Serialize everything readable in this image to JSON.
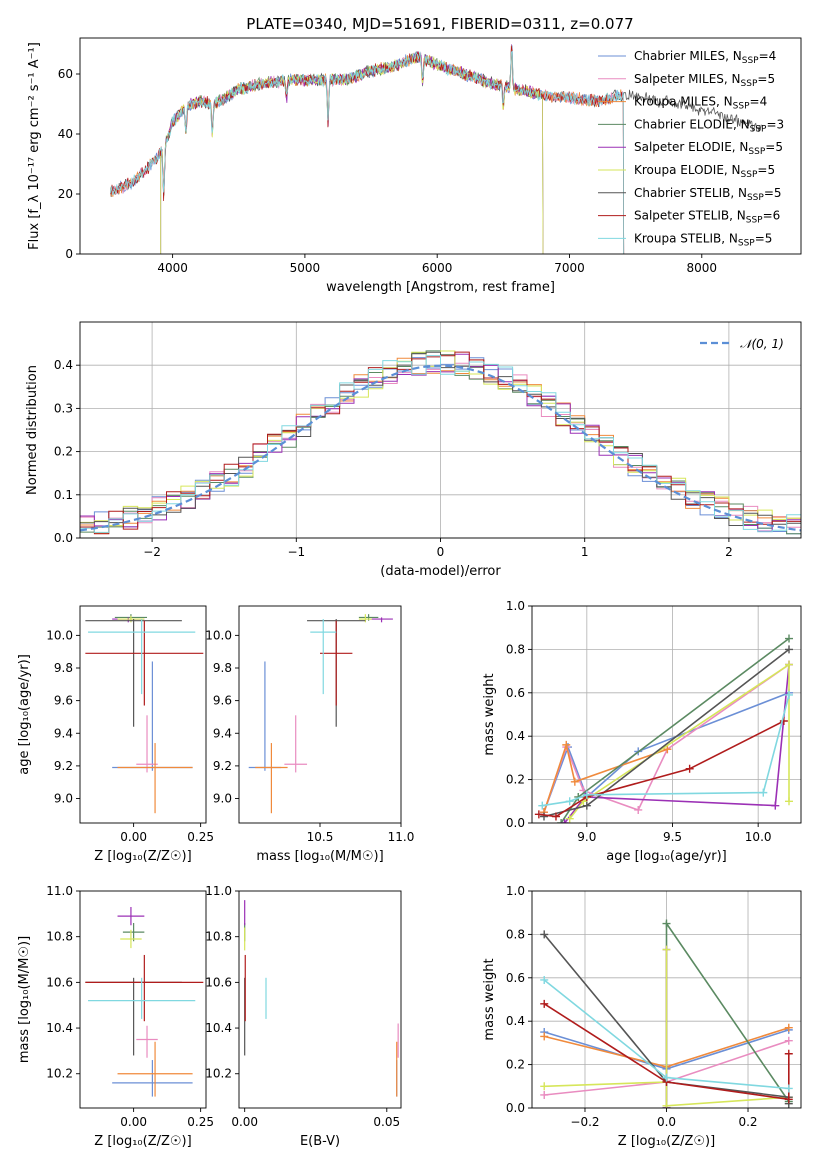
{
  "figure_title": "PLATE=0340, MJD=51691, FIBERID=0311, z=0.077",
  "colors": {
    "Chabrier MILES": "#6b8fd6",
    "Salpeter MILES": "#e98cc0",
    "Kroupa MILES": "#f08a3c",
    "Chabrier ELODIE": "#5b8a62",
    "Salpeter ELODIE": "#9b30b5",
    "Kroupa ELODIE": "#d6e65a",
    "Chabrier STELIB": "#555555",
    "Salpeter STELIB": "#b01c1c",
    "Kroupa STELIB": "#80d8e0"
  },
  "chart_data": [
    {
      "id": "spectrum",
      "type": "line",
      "xlabel": "wavelength [Angstrom, rest frame]",
      "ylabel": "Flux [f_λ 10⁻¹⁷ erg cm⁻² s⁻¹ A⁻¹]",
      "xlim": [
        3300,
        8750
      ],
      "ylim": [
        0,
        72
      ],
      "xticks": [
        4000,
        5000,
        6000,
        7000,
        8000
      ],
      "yticks": [
        0,
        20,
        40,
        60
      ],
      "legend_position": "right",
      "legend": [
        {
          "label": "Chabrier MILES, N",
          "sub": "SSP",
          "tail": "=4",
          "model": "Chabrier MILES"
        },
        {
          "label": "Salpeter MILES, N",
          "sub": "SSP",
          "tail": "=5",
          "model": "Salpeter MILES"
        },
        {
          "label": "Kroupa MILES, N",
          "sub": "SSP",
          "tail": "=4",
          "model": "Kroupa MILES"
        },
        {
          "label": "Chabrier ELODIE, N",
          "sub": "SSP",
          "tail": "=3",
          "model": "Chabrier ELODIE"
        },
        {
          "label": "Salpeter ELODIE, N",
          "sub": "SSP",
          "tail": "=5",
          "model": "Salpeter ELODIE"
        },
        {
          "label": "Kroupa ELODIE, N",
          "sub": "SSP",
          "tail": "=5",
          "model": "Kroupa ELODIE"
        },
        {
          "label": "Chabrier STELIB, N",
          "sub": "SSP",
          "tail": "=5",
          "model": "Chabrier STELIB"
        },
        {
          "label": "Salpeter STELIB, N",
          "sub": "SSP",
          "tail": "=6",
          "model": "Salpeter STELIB"
        },
        {
          "label": "Kroupa STELIB, N",
          "sub": "SSP",
          "tail": "=5",
          "model": "Kroupa STELIB"
        }
      ],
      "continuum": {
        "x": [
          3550,
          3700,
          3800,
          3900,
          3950,
          4000,
          4100,
          4200,
          4300,
          4400,
          4500,
          4700,
          4900,
          5100,
          5300,
          5500,
          5700,
          5850,
          6000,
          6200,
          6400,
          6600,
          6800,
          7000,
          7200,
          7400,
          7700,
          8000,
          8300,
          8450
        ],
        "y": [
          21,
          24,
          28,
          33,
          37,
          44,
          49,
          51,
          50,
          52,
          55,
          57,
          58,
          58,
          58,
          61,
          63,
          66,
          63,
          60,
          57,
          55,
          53,
          52,
          51,
          53,
          51,
          48,
          44,
          42
        ]
      },
      "series": [
        {
          "name": "Chabrier MILES",
          "x_range": [
            3530,
            7410
          ],
          "dropouts": [
            7410
          ]
        },
        {
          "name": "Salpeter MILES",
          "x_range": [
            3530,
            7410
          ],
          "dropouts": [
            7410
          ]
        },
        {
          "name": "Kroupa MILES",
          "x_range": [
            3530,
            7410
          ],
          "dropouts": [
            7410
          ]
        },
        {
          "name": "Chabrier ELODIE",
          "x_range": [
            3910,
            6800
          ],
          "dropouts": [
            3910,
            6800
          ]
        },
        {
          "name": "Salpeter ELODIE",
          "x_range": [
            3910,
            6800
          ],
          "dropouts": [
            3910,
            6800
          ]
        },
        {
          "name": "Kroupa ELODIE",
          "x_range": [
            3910,
            6800
          ],
          "dropouts": [
            3910,
            6800
          ]
        },
        {
          "name": "Chabrier STELIB",
          "x_range": [
            3530,
            8450
          ],
          "dropouts": []
        },
        {
          "name": "Salpeter STELIB",
          "x_range": [
            3530,
            7410
          ],
          "dropouts": [
            7410
          ]
        },
        {
          "name": "Kroupa STELIB",
          "x_range": [
            3530,
            7410
          ],
          "dropouts": [
            7410
          ]
        }
      ],
      "features": [
        {
          "x": 3933,
          "depth": 16
        },
        {
          "x": 4101,
          "depth": 8
        },
        {
          "x": 4300,
          "depth": 10
        },
        {
          "x": 4861,
          "depth": 6
        },
        {
          "x": 5175,
          "depth": 14
        },
        {
          "x": 5890,
          "depth": 8
        },
        {
          "x": 6500,
          "depth": 7
        },
        {
          "x": 6563,
          "depth": -14
        }
      ]
    },
    {
      "id": "residuals",
      "type": "histogram",
      "xlabel": "(data-model)/error",
      "ylabel": "Normed distribution",
      "xlim": [
        -2.5,
        2.5
      ],
      "ylim": [
        0,
        0.5
      ],
      "xticks": [
        -2,
        -1,
        0,
        1,
        2
      ],
      "yticks": [
        0.0,
        0.1,
        0.2,
        0.3,
        0.4
      ],
      "grid": true,
      "bin_width": 0.1,
      "legend_position": "top-right",
      "reference_label": "𝒩(0, 1)",
      "reference_color": "#5b8fd6"
    },
    {
      "id": "age_vs_Z",
      "type": "errorbar",
      "xlabel": "Z [log₁₀(Z/Z☉)]",
      "ylabel": "age  [log₁₀(age/yr)]",
      "xlim": [
        -0.2,
        0.27
      ],
      "ylim": [
        8.85,
        10.18
      ],
      "xticks": [
        0.0,
        0.25
      ],
      "yticks": [
        9.0,
        9.2,
        9.4,
        9.6,
        9.8,
        10.0
      ],
      "points": [
        {
          "model": "Chabrier MILES",
          "x": 0.07,
          "y": 9.19,
          "xerr": 0.15,
          "yerr": [
            0.02,
            0.65
          ]
        },
        {
          "model": "Salpeter MILES",
          "x": 0.05,
          "y": 9.21,
          "xerr": 0.04,
          "yerr": [
            0.05,
            0.3
          ]
        },
        {
          "model": "Kroupa MILES",
          "x": 0.08,
          "y": 9.19,
          "xerr": 0.14,
          "yerr": [
            0.28,
            0.15
          ]
        },
        {
          "model": "Chabrier ELODIE",
          "x": -0.01,
          "y": 10.11,
          "xerr": 0.06,
          "yerr": [
            0.02,
            0.02
          ]
        },
        {
          "model": "Salpeter ELODIE",
          "x": -0.02,
          "y": 10.1,
          "xerr": 0.06,
          "yerr": [
            0.02,
            0.01
          ]
        },
        {
          "model": "Kroupa ELODIE",
          "x": -0.01,
          "y": 10.1,
          "xerr": 0.05,
          "yerr": [
            0.02,
            0.02
          ]
        },
        {
          "model": "Chabrier STELIB",
          "x": 0.0,
          "y": 10.09,
          "xerr": 0.18,
          "yerr": [
            0.65,
            0.01
          ]
        },
        {
          "model": "Salpeter STELIB",
          "x": 0.04,
          "y": 9.89,
          "xerr": 0.22,
          "yerr": [
            0.32,
            0.2
          ]
        },
        {
          "model": "Kroupa STELIB",
          "x": 0.03,
          "y": 10.02,
          "xerr": 0.2,
          "yerr": [
            0.38,
            0.08
          ]
        }
      ]
    },
    {
      "id": "age_vs_mass",
      "type": "errorbar",
      "xlabel": "mass [log₁₀(M/M☉)]",
      "ylabel": "",
      "xlim": [
        10.0,
        11.0
      ],
      "ylim": [
        8.85,
        10.18
      ],
      "xticks": [
        10.5,
        11.0
      ],
      "yticks": [
        9.0,
        9.2,
        9.4,
        9.6,
        9.8,
        10.0
      ],
      "points": [
        {
          "model": "Chabrier MILES",
          "x": 10.16,
          "y": 9.19,
          "xerr": 0.1,
          "yerr": [
            0.02,
            0.65
          ]
        },
        {
          "model": "Salpeter MILES",
          "x": 10.35,
          "y": 9.21,
          "xerr": 0.07,
          "yerr": [
            0.05,
            0.3
          ]
        },
        {
          "model": "Kroupa MILES",
          "x": 10.2,
          "y": 9.19,
          "xerr": 0.1,
          "yerr": [
            0.28,
            0.15
          ]
        },
        {
          "model": "Chabrier ELODIE",
          "x": 10.8,
          "y": 10.11,
          "xerr": 0.06,
          "yerr": [
            0.02,
            0.02
          ]
        },
        {
          "model": "Salpeter ELODIE",
          "x": 10.88,
          "y": 10.1,
          "xerr": 0.07,
          "yerr": [
            0.02,
            0.01
          ]
        },
        {
          "model": "Kroupa ELODIE",
          "x": 10.78,
          "y": 10.1,
          "xerr": 0.04,
          "yerr": [
            0.02,
            0.03
          ]
        },
        {
          "model": "Chabrier STELIB",
          "x": 10.6,
          "y": 10.09,
          "xerr": 0.18,
          "yerr": [
            0.65,
            0.01
          ]
        },
        {
          "model": "Salpeter STELIB",
          "x": 10.6,
          "y": 9.89,
          "xerr": 0.1,
          "yerr": [
            0.32,
            0.2
          ]
        },
        {
          "model": "Kroupa STELIB",
          "x": 10.52,
          "y": 10.02,
          "xerr": 0.08,
          "yerr": [
            0.38,
            0.08
          ]
        }
      ]
    },
    {
      "id": "weight_vs_age",
      "type": "line",
      "xlabel": "age  [log₁₀(age/yr)]",
      "ylabel": "mass weight",
      "xlim": [
        8.68,
        10.25
      ],
      "ylim": [
        0,
        1.0
      ],
      "xticks": [
        9.0,
        9.5,
        10.0
      ],
      "yticks": [
        0.0,
        0.2,
        0.4,
        0.6,
        0.8,
        1.0
      ],
      "grid": true,
      "series": [
        {
          "name": "Chabrier MILES",
          "x": [
            8.75,
            8.89,
            9.0,
            9.3,
            10.18
          ],
          "y": [
            0.05,
            0.35,
            0.12,
            0.33,
            0.6
          ]
        },
        {
          "name": "Salpeter MILES",
          "x": [
            8.75,
            8.88,
            8.98,
            9.3,
            9.47,
            10.18
          ],
          "y": [
            0.05,
            0.35,
            0.15,
            0.06,
            0.34,
            0.73
          ]
        },
        {
          "name": "Kroupa MILES",
          "x": [
            8.75,
            8.88,
            8.93,
            9.47
          ],
          "y": [
            0.05,
            0.36,
            0.19,
            0.34
          ]
        },
        {
          "name": "Chabrier ELODIE",
          "x": [
            8.85,
            8.95,
            10.18
          ],
          "y": [
            0.0,
            0.12,
            0.85
          ]
        },
        {
          "name": "Salpeter ELODIE",
          "x": [
            8.87,
            8.99,
            10.1,
            10.18
          ],
          "y": [
            0.0,
            0.12,
            0.08,
            0.73
          ]
        },
        {
          "name": "Kroupa ELODIE",
          "x": [
            8.9,
            8.98,
            10.18,
            10.18
          ],
          "y": [
            0.02,
            0.1,
            0.73,
            0.1
          ]
        },
        {
          "name": "Chabrier STELIB",
          "x": [
            8.75,
            9.0,
            10.18
          ],
          "y": [
            0.03,
            0.08,
            0.8
          ]
        },
        {
          "name": "Salpeter STELIB",
          "x": [
            8.72,
            8.82,
            9.0,
            9.6,
            10.15
          ],
          "y": [
            0.04,
            0.03,
            0.12,
            0.25,
            0.47
          ]
        },
        {
          "name": "Kroupa STELIB",
          "x": [
            8.74,
            8.9,
            9.0,
            10.03,
            10.18
          ],
          "y": [
            0.08,
            0.1,
            0.13,
            0.14,
            0.59
          ]
        }
      ]
    },
    {
      "id": "mass_vs_Z",
      "type": "errorbar",
      "xlabel": "Z [log₁₀(Z/Z☉)]",
      "ylabel": "mass [log₁₀(M/M☉)]",
      "xlim": [
        -0.2,
        0.27
      ],
      "ylim": [
        10.05,
        11.0
      ],
      "xticks": [
        0.0,
        0.25
      ],
      "yticks": [
        10.2,
        10.4,
        10.6,
        10.8,
        11.0
      ],
      "points": [
        {
          "model": "Chabrier MILES",
          "x": 0.07,
          "y": 10.16,
          "xerr": 0.15,
          "yerr": [
            0.06,
            0.1
          ]
        },
        {
          "model": "Salpeter MILES",
          "x": 0.05,
          "y": 10.35,
          "xerr": 0.04,
          "yerr": [
            0.08,
            0.06
          ]
        },
        {
          "model": "Kroupa MILES",
          "x": 0.08,
          "y": 10.2,
          "xerr": 0.14,
          "yerr": [
            0.1,
            0.14
          ]
        },
        {
          "model": "Chabrier ELODIE",
          "x": 0.0,
          "y": 10.82,
          "xerr": 0.04,
          "yerr": [
            0.04,
            0.04
          ]
        },
        {
          "model": "Salpeter ELODIE",
          "x": -0.01,
          "y": 10.89,
          "xerr": 0.05,
          "yerr": [
            0.04,
            0.04
          ]
        },
        {
          "model": "Kroupa ELODIE",
          "x": -0.01,
          "y": 10.79,
          "xerr": 0.04,
          "yerr": [
            0.04,
            0.04
          ]
        },
        {
          "model": "Chabrier STELIB",
          "x": 0.0,
          "y": 10.6,
          "xerr": 0.18,
          "yerr": [
            0.32,
            0.02
          ]
        },
        {
          "model": "Salpeter STELIB",
          "x": 0.04,
          "y": 10.6,
          "xerr": 0.22,
          "yerr": [
            0.17,
            0.12
          ]
        },
        {
          "model": "Kroupa STELIB",
          "x": 0.03,
          "y": 10.52,
          "xerr": 0.2,
          "yerr": [
            0.08,
            0.1
          ]
        }
      ]
    },
    {
      "id": "mass_vs_ebv",
      "type": "errorbar",
      "xlabel": "E(B-V)",
      "ylabel": "",
      "xlim": [
        -0.002,
        0.055
      ],
      "ylim": [
        10.05,
        11.0
      ],
      "xticks": [
        0.0,
        0.05
      ],
      "yticks": [
        10.2,
        10.4,
        10.6,
        10.8,
        11.0
      ],
      "points": [
        {
          "model": "Chabrier MILES",
          "x": 0.0535,
          "y": 10.16,
          "xerr": 0.0,
          "yerr": [
            0.06,
            0.1
          ]
        },
        {
          "model": "Salpeter MILES",
          "x": 0.054,
          "y": 10.35,
          "xerr": 0.0,
          "yerr": [
            0.08,
            0.07
          ]
        },
        {
          "model": "Kroupa MILES",
          "x": 0.0535,
          "y": 10.2,
          "xerr": 0.0,
          "yerr": [
            0.1,
            0.14
          ]
        },
        {
          "model": "Chabrier ELODIE",
          "x": 0.0,
          "y": 10.82,
          "xerr": 0.0,
          "yerr": [
            0.04,
            0.04
          ]
        },
        {
          "model": "Salpeter ELODIE",
          "x": 0.0,
          "y": 10.89,
          "xerr": 0.0,
          "yerr": [
            0.04,
            0.07
          ]
        },
        {
          "model": "Kroupa ELODIE",
          "x": 0.0,
          "y": 10.79,
          "xerr": 0.0,
          "yerr": [
            0.05,
            0.05
          ]
        },
        {
          "model": "Chabrier STELIB",
          "x": 0.0,
          "y": 10.6,
          "xerr": 0.0,
          "yerr": [
            0.32,
            0.02
          ]
        },
        {
          "model": "Salpeter STELIB",
          "x": 0.0002,
          "y": 10.6,
          "xerr": 0.0,
          "yerr": [
            0.17,
            0.12
          ]
        },
        {
          "model": "Kroupa STELIB",
          "x": 0.0075,
          "y": 10.52,
          "xerr": 0.0,
          "yerr": [
            0.08,
            0.1
          ]
        }
      ]
    },
    {
      "id": "weight_vs_Z",
      "type": "line",
      "xlabel": "Z [log₁₀(Z/Z☉)]",
      "ylabel": "mass weight",
      "xlim": [
        -0.33,
        0.33
      ],
      "ylim": [
        0,
        1.0
      ],
      "xticks": [
        -0.2,
        0.0,
        0.2
      ],
      "yticks": [
        0.0,
        0.2,
        0.4,
        0.6,
        0.8,
        1.0
      ],
      "grid": true,
      "series": [
        {
          "name": "Chabrier MILES",
          "x": [
            -0.3,
            0.0,
            0.3
          ],
          "y": [
            0.35,
            0.18,
            0.36
          ]
        },
        {
          "name": "Salpeter MILES",
          "x": [
            -0.3,
            0.0,
            0.3
          ],
          "y": [
            0.06,
            0.12,
            0.31
          ]
        },
        {
          "name": "Kroupa MILES",
          "x": [
            -0.3,
            0.0,
            0.3
          ],
          "y": [
            0.33,
            0.19,
            0.37
          ]
        },
        {
          "name": "Chabrier ELODIE",
          "x": [
            0.0,
            0.0,
            0.3
          ],
          "y": [
            0.0,
            0.85,
            0.03
          ]
        },
        {
          "name": "Salpeter ELODIE",
          "x": [
            0.0,
            0.0
          ],
          "y": [
            0.0,
            0.73
          ]
        },
        {
          "name": "Kroupa ELODIE",
          "x": [
            -0.3,
            0.0,
            0.0,
            0.0,
            0.3
          ],
          "y": [
            0.1,
            0.12,
            0.73,
            0.01,
            0.05
          ]
        },
        {
          "name": "Chabrier STELIB",
          "x": [
            -0.3,
            0.0,
            0.3,
            0.3
          ],
          "y": [
            0.8,
            0.12,
            0.05,
            0.02
          ]
        },
        {
          "name": "Salpeter STELIB",
          "x": [
            -0.3,
            0.0,
            0.3,
            0.3
          ],
          "y": [
            0.48,
            0.12,
            0.04,
            0.25
          ]
        },
        {
          "name": "Kroupa STELIB",
          "x": [
            -0.3,
            0.0,
            0.3
          ],
          "y": [
            0.59,
            0.14,
            0.09
          ]
        }
      ]
    }
  ]
}
